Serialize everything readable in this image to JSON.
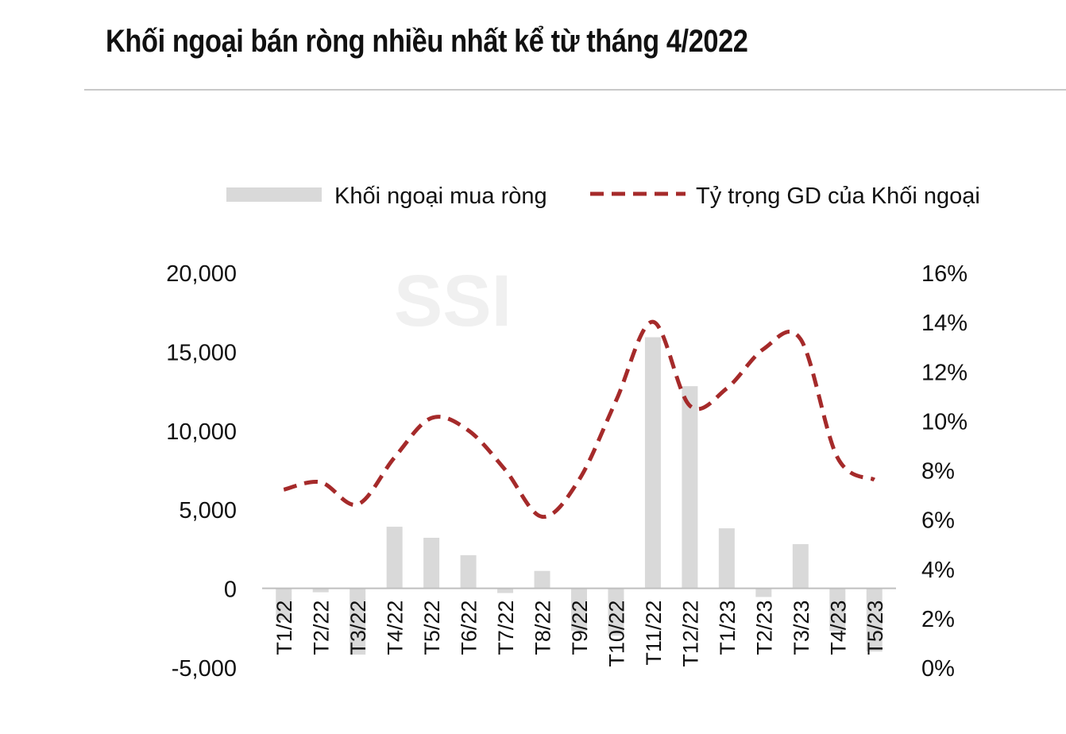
{
  "header": {
    "title": "Khối ngoại bán ròng nhiều nhất kể từ tháng 4/2022"
  },
  "watermark": {
    "text": "SSI"
  },
  "colors": {
    "bar": "#d9d9d9",
    "line": "#a52a2a",
    "watermark": "#f0f0f0",
    "axis": "#bfbfbf"
  },
  "chart_data": {
    "type": "bar",
    "legend_position": "top",
    "grid": false,
    "categories": [
      "T1/22",
      "T2/22",
      "T3/22",
      "T4/22",
      "T5/22",
      "T6/22",
      "T7/22",
      "T8/22",
      "T9/22",
      "T10/22",
      "T11/22",
      "T12/22",
      "T1/23",
      "T2/23",
      "T3/23",
      "T4/23",
      "T5/23"
    ],
    "series": [
      {
        "name": "Khối ngoại mua ròng",
        "type": "bar",
        "axis": "left",
        "values": [
          -2000,
          -250,
          -4200,
          3900,
          3200,
          2100,
          -300,
          1100,
          -2700,
          -3000,
          15900,
          12800,
          3800,
          -550,
          2800,
          -2700,
          -4000
        ]
      },
      {
        "name": "Tỷ trọng GD của Khối ngoại",
        "type": "line",
        "style": "dashed",
        "axis": "right",
        "values": [
          7.2,
          7.5,
          6.6,
          8.5,
          10.1,
          9.6,
          8.0,
          6.1,
          7.6,
          10.8,
          14.0,
          10.6,
          11.3,
          12.9,
          13.3,
          8.5,
          7.6
        ]
      }
    ],
    "left_axis": {
      "ylim": [
        -5000,
        20000
      ],
      "ticks": [
        "-5,000",
        "0",
        "5,000",
        "10,000",
        "15,000",
        "20,000"
      ],
      "tick_values": [
        -5000,
        0,
        5000,
        10000,
        15000,
        20000
      ]
    },
    "right_axis": {
      "ylim": [
        0,
        16
      ],
      "ticks": [
        "0%",
        "2%",
        "4%",
        "6%",
        "8%",
        "10%",
        "12%",
        "14%",
        "16%"
      ],
      "tick_values": [
        0,
        2,
        4,
        6,
        8,
        10,
        12,
        14,
        16
      ]
    }
  }
}
